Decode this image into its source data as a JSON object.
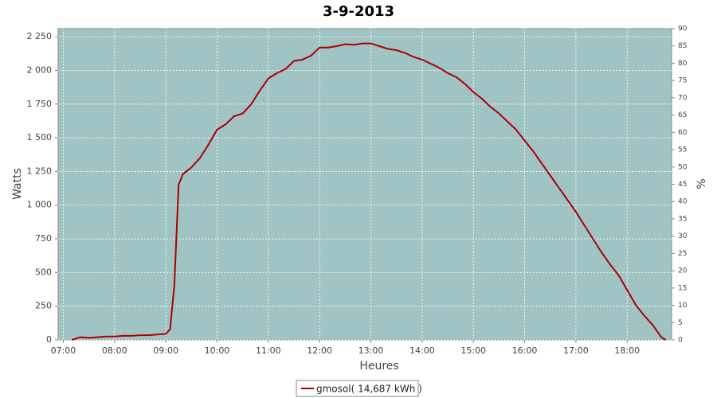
{
  "chart_data": {
    "type": "line",
    "title": "3-9-2013",
    "x_label": "Heures",
    "y_label": "Watts",
    "y2_label": "%",
    "x": [
      "07:10",
      "07:20",
      "07:30",
      "07:40",
      "07:50",
      "08:00",
      "08:10",
      "08:20",
      "08:30",
      "08:40",
      "08:50",
      "09:00",
      "09:05",
      "09:10",
      "09:15",
      "09:20",
      "09:30",
      "09:40",
      "09:50",
      "10:00",
      "10:10",
      "10:20",
      "10:30",
      "10:40",
      "10:50",
      "11:00",
      "11:10",
      "11:20",
      "11:30",
      "11:40",
      "11:50",
      "12:00",
      "12:10",
      "12:20",
      "12:30",
      "12:40",
      "12:50",
      "13:00",
      "13:10",
      "13:20",
      "13:30",
      "13:40",
      "13:50",
      "14:00",
      "14:10",
      "14:20",
      "14:30",
      "14:40",
      "14:50",
      "15:00",
      "15:10",
      "15:20",
      "15:30",
      "15:40",
      "15:50",
      "16:00",
      "16:10",
      "16:20",
      "16:30",
      "16:40",
      "16:50",
      "17:00",
      "17:10",
      "17:20",
      "17:30",
      "17:40",
      "17:50",
      "18:00",
      "18:10",
      "18:20",
      "18:30",
      "18:40",
      "18:45"
    ],
    "series": [
      {
        "name": "gmosol( 14,687 kWh )",
        "color": "#aa0000",
        "values": [
          0,
          20,
          15,
          20,
          25,
          25,
          30,
          30,
          35,
          35,
          40,
          45,
          80,
          400,
          1150,
          1230,
          1280,
          1350,
          1450,
          1560,
          1600,
          1660,
          1680,
          1750,
          1850,
          1940,
          1980,
          2010,
          2070,
          2080,
          2110,
          2170,
          2170,
          2180,
          2195,
          2190,
          2200,
          2200,
          2180,
          2160,
          2150,
          2130,
          2100,
          2080,
          2050,
          2020,
          1980,
          1950,
          1900,
          1840,
          1790,
          1730,
          1680,
          1620,
          1560,
          1480,
          1400,
          1310,
          1220,
          1130,
          1040,
          950,
          850,
          750,
          650,
          560,
          480,
          370,
          260,
          180,
          110,
          20,
          0
        ]
      }
    ],
    "xlim": [
      "06:54",
      "18:52"
    ],
    "xticks": [
      "07:00",
      "08:00",
      "09:00",
      "10:00",
      "11:00",
      "12:00",
      "13:00",
      "14:00",
      "15:00",
      "16:00",
      "17:00",
      "18:00"
    ],
    "ylim": [
      0,
      2310
    ],
    "yticks": [
      0,
      250,
      500,
      750,
      {
        "value": 1000,
        "label": "1 000"
      },
      {
        "value": 1250,
        "label": "1 250"
      },
      {
        "value": 1500,
        "label": "1 500"
      },
      {
        "value": 1750,
        "label": "1 750"
      },
      {
        "value": 2000,
        "label": "2 000"
      },
      {
        "value": 2250,
        "label": "2 250"
      }
    ],
    "y2lim": [
      0,
      90
    ],
    "y2ticks": [
      0,
      5,
      10,
      15,
      20,
      25,
      30,
      35,
      40,
      45,
      50,
      55,
      60,
      65,
      70,
      75,
      80,
      85,
      90
    ],
    "grid": true,
    "background": "#a0c4c4"
  }
}
